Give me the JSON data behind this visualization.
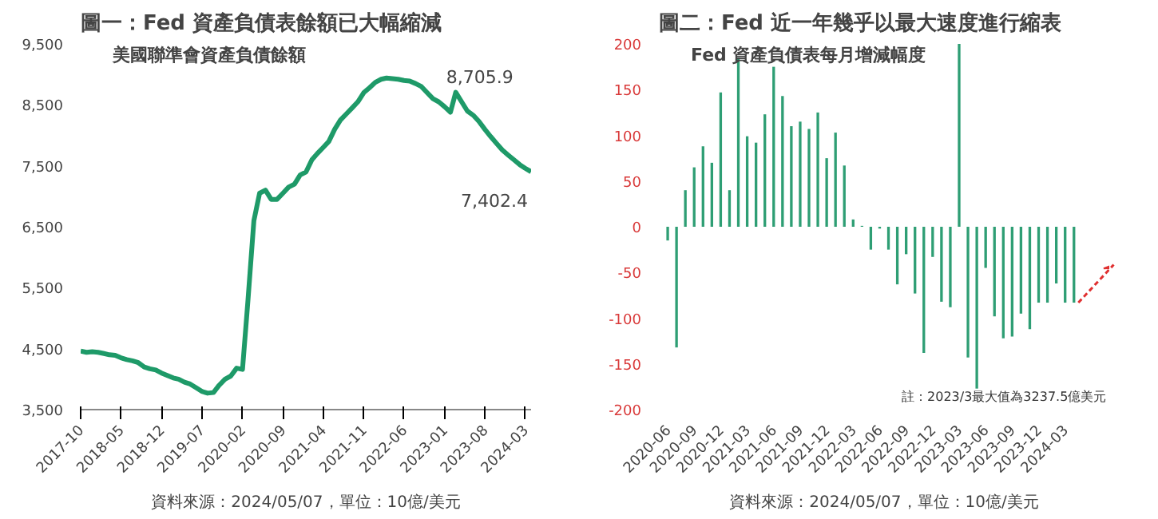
{
  "chart_data": [
    {
      "type": "line",
      "title": "圖一：Fed 資產負債表餘額已大幅縮減",
      "subtitle": "美國聯準會資產負債餘額",
      "color": "#1e9a68",
      "grid": false,
      "x": [
        "2017-10",
        "2017-11",
        "2017-12",
        "2018-01",
        "2018-02",
        "2018-03",
        "2018-04",
        "2018-05",
        "2018-06",
        "2018-07",
        "2018-08",
        "2018-09",
        "2018-10",
        "2018-11",
        "2018-12",
        "2019-01",
        "2019-02",
        "2019-03",
        "2019-04",
        "2019-05",
        "2019-06",
        "2019-07",
        "2019-08",
        "2019-09",
        "2019-10",
        "2019-11",
        "2019-12",
        "2020-01",
        "2020-02",
        "2020-03",
        "2020-04",
        "2020-05",
        "2020-06",
        "2020-07",
        "2020-08",
        "2020-09",
        "2020-10",
        "2020-11",
        "2020-12",
        "2021-01",
        "2021-02",
        "2021-03",
        "2021-04",
        "2021-05",
        "2021-06",
        "2021-07",
        "2021-08",
        "2021-09",
        "2021-10",
        "2021-11",
        "2021-12",
        "2022-01",
        "2022-02",
        "2022-03",
        "2022-04",
        "2022-05",
        "2022-06",
        "2022-07",
        "2022-08",
        "2022-09",
        "2022-10",
        "2022-11",
        "2022-12",
        "2023-01",
        "2023-02",
        "2023-03",
        "2023-04",
        "2023-05",
        "2023-06",
        "2023-07",
        "2023-08",
        "2023-09",
        "2023-10",
        "2023-11",
        "2023-12",
        "2024-01",
        "2024-02",
        "2024-03",
        "2024-04"
      ],
      "values": [
        4460,
        4440,
        4450,
        4440,
        4420,
        4400,
        4390,
        4350,
        4320,
        4300,
        4270,
        4200,
        4170,
        4150,
        4100,
        4060,
        4020,
        4000,
        3950,
        3920,
        3860,
        3800,
        3770,
        3780,
        3900,
        4000,
        4050,
        4180,
        4160,
        5300,
        6600,
        7050,
        7100,
        6950,
        6950,
        7050,
        7150,
        7200,
        7350,
        7400,
        7600,
        7700,
        7800,
        7900,
        8100,
        8250,
        8350,
        8450,
        8550,
        8700,
        8780,
        8870,
        8920,
        8940,
        8930,
        8920,
        8900,
        8890,
        8850,
        8800,
        8700,
        8600,
        8550,
        8470,
        8380,
        8705.9,
        8550,
        8400,
        8330,
        8230,
        8100,
        7980,
        7870,
        7760,
        7680,
        7600,
        7520,
        7460,
        7402.4
      ],
      "xlim": [
        "2017-10",
        "2024-04"
      ],
      "xticks": [
        "2017-10",
        "2018-05",
        "2018-12",
        "2019-07",
        "2020-02",
        "2020-09",
        "2021-04",
        "2021-11",
        "2022-06",
        "2023-01",
        "2023-08",
        "2024-03"
      ],
      "ylim": [
        3500,
        9500
      ],
      "yticks": [
        {
          "value": 3500,
          "label": "3,500"
        },
        {
          "value": 4500,
          "label": "4,500"
        },
        {
          "value": 5500,
          "label": "5,500"
        },
        {
          "value": 6500,
          "label": "6,500"
        },
        {
          "value": 7500,
          "label": "7,500"
        },
        {
          "value": 8500,
          "label": "8,500"
        },
        {
          "value": 9500,
          "label": "9,500"
        }
      ],
      "annotations": [
        {
          "text": "8,705.9",
          "x": "2023-03",
          "y": 8705.9
        },
        {
          "text": "7,402.4",
          "x": "2024-04",
          "y": 7402.4
        },
        "資料來源：2024/05/07，單位：10億/美元"
      ]
    },
    {
      "type": "bar",
      "title": "圖二：Fed 近一年幾乎以最大速度進行縮表",
      "subtitle": "Fed 資產負債表每月增減幅度",
      "color": "#2e9e74",
      "grid": false,
      "categories": [
        "2020-06",
        null,
        null,
        "2020-09",
        null,
        null,
        "2020-12",
        null,
        null,
        "2021-03",
        null,
        null,
        "2021-06",
        null,
        null,
        "2021-09",
        null,
        null,
        "2021-12",
        null,
        null,
        "2022-03",
        null,
        null,
        "2022-06",
        null,
        null,
        "2022-09",
        null,
        null,
        "2022-12",
        null,
        null,
        "2023-03",
        null,
        null,
        "2023-06",
        null,
        null,
        "2023-09",
        null,
        null,
        "2023-12",
        null,
        null,
        "2024-03",
        null
      ],
      "values": [
        -15,
        -132,
        40,
        65,
        88,
        70,
        147,
        40,
        185,
        99,
        92,
        123,
        175,
        143,
        110,
        115,
        107,
        125,
        75,
        103,
        67,
        8,
        1,
        -25,
        -2,
        -25,
        -63,
        -30,
        -73,
        -138,
        -33,
        -82,
        -88,
        200,
        -143,
        -177,
        -45,
        -98,
        -122,
        -120,
        -95,
        -112,
        -83,
        -83,
        -62,
        -83,
        -83
      ],
      "ylim": [
        -200,
        200
      ],
      "yticks": [
        -200,
        -150,
        -100,
        -50,
        0,
        50,
        100,
        150,
        200
      ],
      "annotations": [
        "註：2023/3最大值為3237.5億美元",
        "資料來源：2024/05/07，單位：10億/美元"
      ]
    }
  ]
}
